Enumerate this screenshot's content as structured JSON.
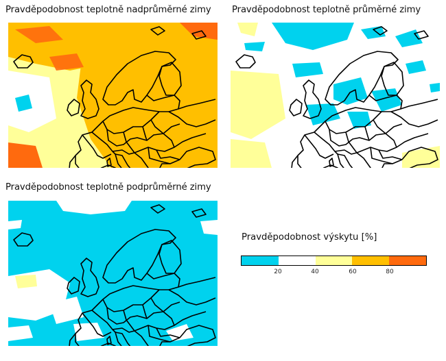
{
  "panels": [
    {
      "title": "Pravděpodobnost teplotně nadprůměrné zimy",
      "dominant_category": "60-80"
    },
    {
      "title": "Pravděpodobnost teplotně průměrné zimy",
      "dominant_category": "20-40"
    },
    {
      "title": "Pravděpodobnost teplotně podprůměrné zimy",
      "dominant_category": "0-20"
    }
  ],
  "legend": {
    "title": "Pravděpodobnost výskytu [%]",
    "colors": [
      "#00d2ee",
      "#ffffff",
      "#ffff99",
      "#ffbf00",
      "#ff6a0e"
    ],
    "ticks": [
      "20",
      "40",
      "60",
      "80"
    ]
  }
}
